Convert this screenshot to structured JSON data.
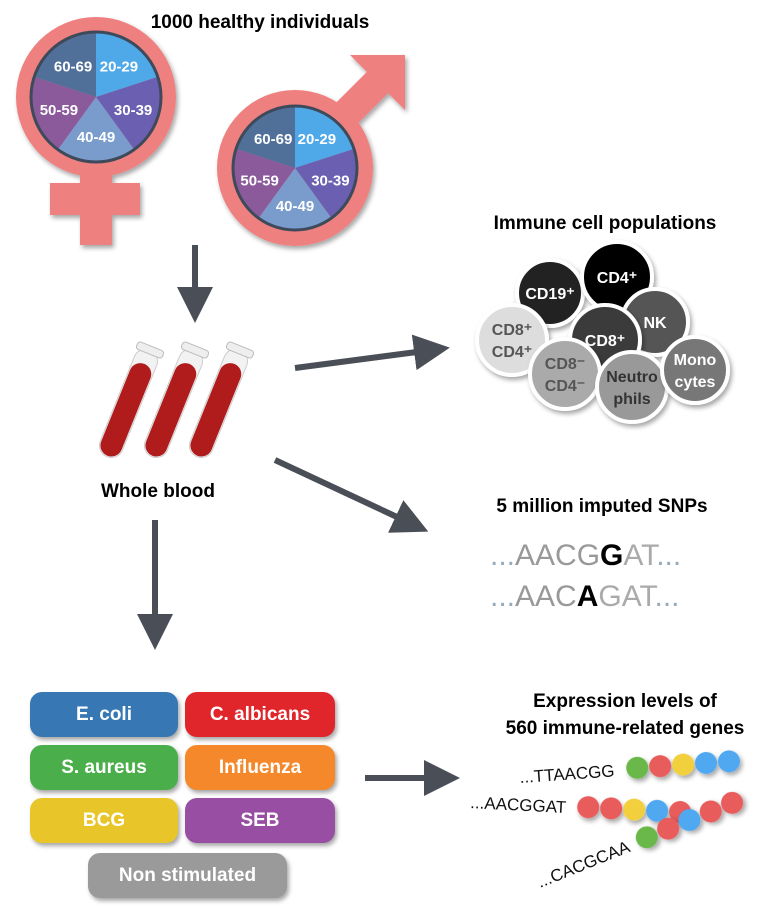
{
  "cohort": {
    "title_line1": "1000 healthy individuals",
    "title_line2": "",
    "age_groups": [
      "20-29",
      "30-39",
      "40-49",
      "50-59",
      "60-69"
    ],
    "age_colors": [
      "#4fa8e8",
      "#6a5fb0",
      "#7a9ccc",
      "#8a5a9a",
      "#50709a"
    ],
    "symbol_color": "#ee8080"
  },
  "sample": {
    "label": "Whole blood",
    "tube_color": "#b01c1c"
  },
  "immune": {
    "title": "Immune cell populations",
    "cells": [
      {
        "lines": [
          "CD19⁺"
        ],
        "fill": "#222222",
        "text": "#ffffff"
      },
      {
        "lines": [
          "CD4⁺"
        ],
        "fill": "#000000",
        "text": "#ffffff"
      },
      {
        "lines": [
          "NK"
        ],
        "fill": "#555555",
        "text": "#ffffff"
      },
      {
        "lines": [
          "CD8⁺",
          "CD4⁺"
        ],
        "fill": "#dddddd",
        "text": "#555555"
      },
      {
        "lines": [
          "CD8⁺"
        ],
        "fill": "#3a3a3a",
        "text": "#ffffff"
      },
      {
        "lines": [
          "CD8⁻",
          "CD4⁻"
        ],
        "fill": "#aaaaaa",
        "text": "#555555"
      },
      {
        "lines": [
          "Neutro",
          "phils"
        ],
        "fill": "#999999",
        "text": "#333333"
      },
      {
        "lines": [
          "Mono",
          "cytes"
        ],
        "fill": "#777777",
        "text": "#ffffff"
      }
    ]
  },
  "snps": {
    "title": "5 million imputed SNPs",
    "seq1": {
      "pre": "AACG",
      "var": "G",
      "post": "AT"
    },
    "seq2": {
      "pre": "AAC",
      "var": "A",
      "post": "GAT"
    },
    "ellipsis": "..."
  },
  "stimuli": [
    {
      "label": "E. coli",
      "color": "#3778b4"
    },
    {
      "label": "C. albicans",
      "color": "#e0262b"
    },
    {
      "label": "S. aureus",
      "color": "#4aae4a"
    },
    {
      "label": "Influenza",
      "color": "#f5882a"
    },
    {
      "label": "BCG",
      "color": "#e8c62a"
    },
    {
      "label": "SEB",
      "color": "#984ea3"
    },
    {
      "label": "Non stimulated",
      "color": "#9a9a9a"
    }
  ],
  "expression": {
    "title_line1": "Expression levels of",
    "title_line2": "560 immune-related genes",
    "rows": [
      {
        "seq": "...TTAACGG",
        "beads": [
          "#6ab84a",
          "#e85c5c",
          "#f2cf3c",
          "#4fa8f0",
          "#4fa8f0"
        ]
      },
      {
        "seq": "...AACGGAT",
        "beads": [
          "#e85c5c",
          "#e85c5c",
          "#f2cf3c",
          "#4fa8f0",
          "#e85c5c"
        ]
      },
      {
        "seq": "...CACGCAA",
        "beads": [
          "#6ab84a",
          "#e85c5c",
          "#4fa8f0",
          "#e85c5c",
          "#e85c5c"
        ]
      }
    ]
  }
}
